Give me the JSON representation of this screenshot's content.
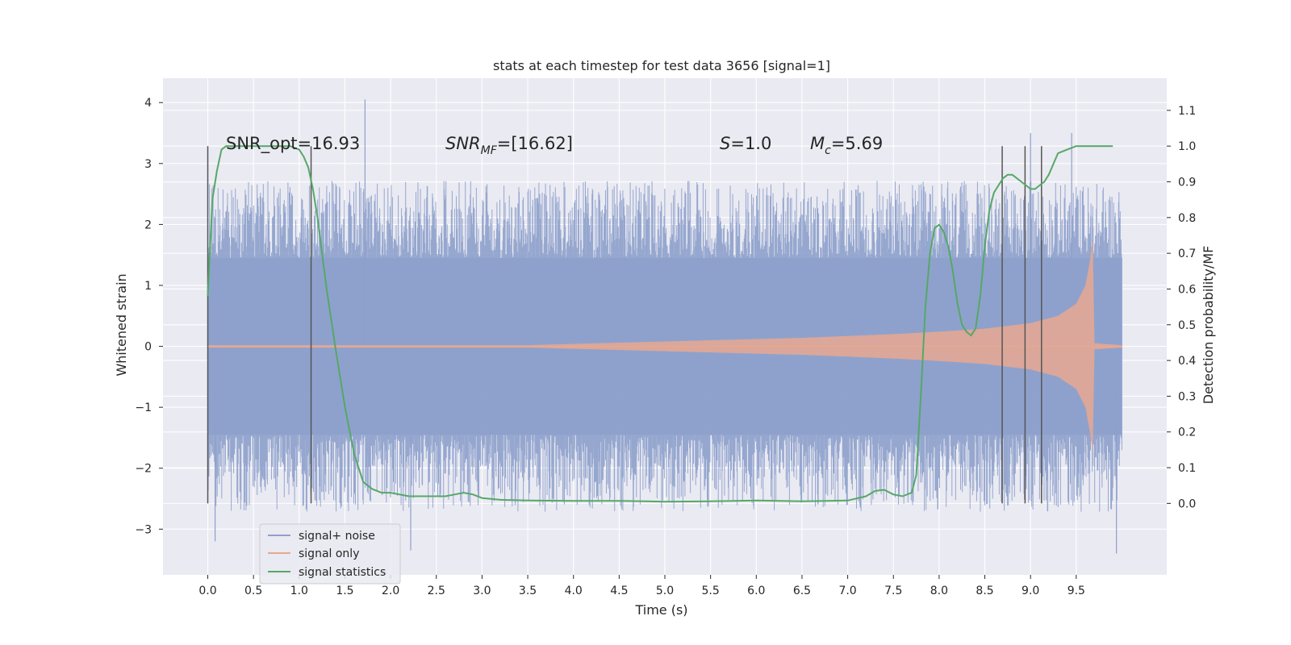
{
  "chart_data": {
    "type": "line",
    "title": "stats at each timestep for test data 3656 [signal=1]",
    "xlabel": "Time (s)",
    "ylabel": "Whitened strain",
    "y2label": "Detection probability/MF",
    "xlim": [
      -0.49,
      10.49
    ],
    "ylim": [
      -3.75,
      4.4
    ],
    "y2lim": [
      -0.2,
      1.19
    ],
    "xticks": [
      "0.0",
      "0.5",
      "1.0",
      "1.5",
      "2.0",
      "2.5",
      "3.0",
      "3.5",
      "4.0",
      "4.5",
      "5.0",
      "5.5",
      "6.0",
      "6.5",
      "7.0",
      "7.5",
      "8.0",
      "8.5",
      "9.0",
      "9.5"
    ],
    "yticks": [
      "−3",
      "−2",
      "−1",
      "0",
      "1",
      "2",
      "3",
      "4"
    ],
    "y2ticks": [
      "0.0",
      "0.1",
      "0.2",
      "0.3",
      "0.4",
      "0.5",
      "0.6",
      "0.7",
      "0.8",
      "0.9",
      "1.0",
      "1.1"
    ],
    "grid": true,
    "legend_position": "lower-left",
    "annotations": {
      "snr_opt": "SNR_opt=16.93",
      "snr_mf_main": "SNR",
      "snr_mf_sub": "MF",
      "snr_mf_rest": "=[16.62]",
      "s_main": "S",
      "s_rest": "=1.0",
      "mc_main": "M",
      "mc_sub": "c",
      "mc_rest": "=5.69"
    },
    "vertical_markers": [
      0.0,
      1.13,
      8.69,
      8.94,
      9.12
    ],
    "series": [
      {
        "name": "signal+ noise",
        "color": "#8da0cb",
        "noise_band": [
          -1.45,
          1.45
        ],
        "envelope": {
          "x": [
            0.0,
            2.0,
            4.0,
            6.0,
            8.0,
            10.0
          ],
          "y": [
            2.6,
            2.6,
            2.6,
            2.6,
            2.6,
            2.6
          ]
        },
        "notable_peaks": [
          {
            "x": 1.72,
            "y": 4.05
          },
          {
            "x": 0.08,
            "y": -3.2
          },
          {
            "x": 2.22,
            "y": -3.35
          },
          {
            "x": 9.94,
            "y": -3.4
          },
          {
            "x": 9.45,
            "y": 3.5
          },
          {
            "x": 9.0,
            "y": 3.5
          }
        ]
      },
      {
        "name": "signal only",
        "color": "#e8a890",
        "envelope": {
          "x": [
            0.0,
            2.0,
            3.5,
            4.0,
            4.5,
            5.0,
            5.5,
            6.0,
            6.5,
            7.0,
            7.5,
            8.0,
            8.5,
            9.0,
            9.3,
            9.5,
            9.6,
            9.65,
            9.68,
            9.7,
            10.0
          ],
          "y": [
            0.02,
            0.02,
            0.02,
            0.04,
            0.06,
            0.08,
            0.1,
            0.12,
            0.14,
            0.17,
            0.2,
            0.24,
            0.29,
            0.38,
            0.5,
            0.7,
            1.0,
            1.4,
            1.75,
            0.05,
            0.02
          ]
        }
      },
      {
        "name": "signal statistics",
        "color": "#55a868",
        "x": [
          0.0,
          0.05,
          0.1,
          0.15,
          0.2,
          0.3,
          0.5,
          0.7,
          0.9,
          1.0,
          1.05,
          1.1,
          1.15,
          1.2,
          1.3,
          1.4,
          1.5,
          1.6,
          1.7,
          1.8,
          1.9,
          2.0,
          2.2,
          2.4,
          2.6,
          2.7,
          2.8,
          2.9,
          3.0,
          3.2,
          3.5,
          4.0,
          4.5,
          4.8,
          5.0,
          5.5,
          6.0,
          6.5,
          7.0,
          7.2,
          7.3,
          7.4,
          7.5,
          7.6,
          7.7,
          7.75,
          7.8,
          7.85,
          7.9,
          7.95,
          8.0,
          8.05,
          8.1,
          8.15,
          8.2,
          8.25,
          8.3,
          8.35,
          8.4,
          8.45,
          8.5,
          8.55,
          8.6,
          8.65,
          8.7,
          8.75,
          8.8,
          8.85,
          8.9,
          8.95,
          9.0,
          9.05,
          9.1,
          9.15,
          9.2,
          9.25,
          9.3,
          9.4,
          9.5,
          9.6,
          9.7,
          9.8,
          9.9
        ],
        "y": [
          0.58,
          0.85,
          0.93,
          0.99,
          1.0,
          1.0,
          1.0,
          1.0,
          1.0,
          0.99,
          0.97,
          0.94,
          0.88,
          0.8,
          0.6,
          0.43,
          0.27,
          0.14,
          0.06,
          0.04,
          0.03,
          0.03,
          0.02,
          0.02,
          0.02,
          0.025,
          0.03,
          0.025,
          0.015,
          0.01,
          0.008,
          0.007,
          0.007,
          0.006,
          0.005,
          0.006,
          0.008,
          0.006,
          0.008,
          0.02,
          0.035,
          0.038,
          0.025,
          0.02,
          0.03,
          0.08,
          0.3,
          0.55,
          0.7,
          0.77,
          0.78,
          0.76,
          0.72,
          0.65,
          0.56,
          0.5,
          0.48,
          0.47,
          0.49,
          0.58,
          0.72,
          0.82,
          0.87,
          0.89,
          0.91,
          0.92,
          0.92,
          0.91,
          0.9,
          0.89,
          0.88,
          0.88,
          0.89,
          0.9,
          0.92,
          0.95,
          0.98,
          0.99,
          1.0,
          1.0,
          1.0,
          1.0,
          1.0
        ]
      }
    ]
  }
}
